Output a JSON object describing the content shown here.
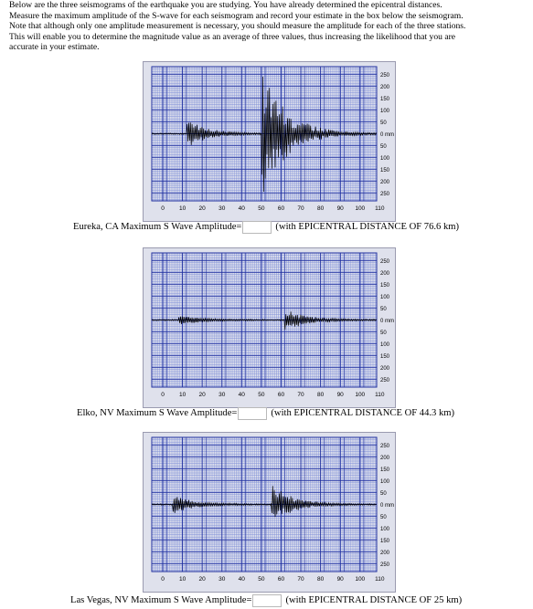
{
  "intro": {
    "lines": [
      "Below are the three seismograms of the earthquake you are studying. You have already determined the epicentral distances.",
      "Measure the maximum amplitude of the S-wave for each seismogram and record your estimate in the box below the seismogram.",
      "Note that although only one amplitude measurement is necessary, you should measure the amplitude for each of the three stations.",
      "This will enable you to determine the magnitude value as an average of three values, thus increasing the likelihood that you are",
      "accurate in your estimate."
    ]
  },
  "seismogram_axis": {
    "x_ticks": [
      "0",
      "10",
      "20",
      "30",
      "40",
      "50",
      "60",
      "70",
      "80",
      "90",
      "100",
      "110"
    ],
    "y_ticks_top": [
      "250",
      "200",
      "150",
      "100",
      "50"
    ],
    "zero_label": "0 mm",
    "y_ticks_bottom": [
      "50",
      "100",
      "150",
      "200",
      "250"
    ]
  },
  "colors": {
    "grid_background": "#dfe1ec",
    "grid_minor": "#7f8fd8",
    "grid_major": "#1f2f9f",
    "trace": "#000000",
    "input_border": "#b9b9b9"
  },
  "stations": [
    {
      "label": "Eureka, CA Maximum S Wave Amplitude=",
      "value": "",
      "distance_text": "(with EPICENTRAL DISTANCE OF 76.6 km)",
      "trace": {
        "p_arrival": 12,
        "p_amp": 28,
        "s_arrival": 50,
        "s_amp": 130,
        "s_decay": 12
      }
    },
    {
      "label": "Elko, NV Maximum S Wave Amplitude=",
      "value": "",
      "distance_text": "(with EPICENTRAL DISTANCE OF 44.3 km)",
      "trace": {
        "p_arrival": 8,
        "p_amp": 10,
        "s_arrival": 62,
        "s_amp": 22,
        "s_decay": 10
      }
    },
    {
      "label": "Las Vegas, NV Maximum S Wave Amplitude=",
      "value": "",
      "distance_text": "(with EPICENTRAL DISTANCE OF 25 km)",
      "trace": {
        "p_arrival": 5,
        "p_amp": 18,
        "s_arrival": 55,
        "s_amp": 40,
        "s_decay": 10
      }
    }
  ]
}
